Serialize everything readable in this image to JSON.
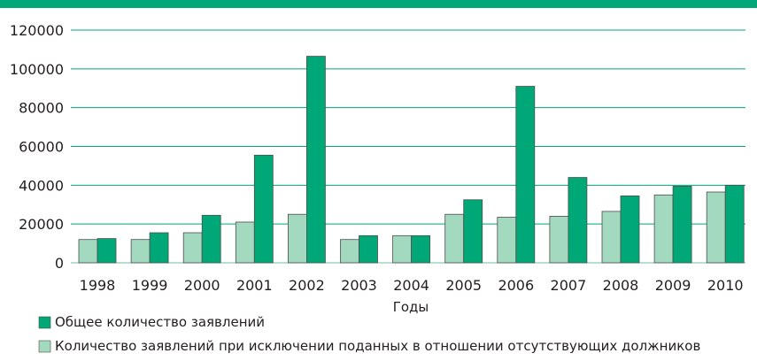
{
  "colors": {
    "top_bar": "#00a878",
    "gridline": "#00a878",
    "axis_text": "#231f20"
  },
  "chart_data": {
    "type": "bar",
    "title": "",
    "xlabel": "Годы",
    "ylabel": "",
    "ylim": [
      0,
      120000
    ],
    "yticks": [
      0,
      20000,
      40000,
      60000,
      80000,
      100000,
      120000
    ],
    "ytick_labels": [
      "0",
      "20000",
      "40000",
      "60000",
      "80000",
      "100000",
      "120000"
    ],
    "grid": true,
    "legend_position": "bottom-left",
    "categories": [
      "1998",
      "1999",
      "2000",
      "2001",
      "2002",
      "2003",
      "2004",
      "2005",
      "2006",
      "2007",
      "2008",
      "2009",
      "2010"
    ],
    "series": [
      {
        "name": "Количество заявлений при исключении поданных в отношении отсутствующих должников",
        "color": "#a3d9bf",
        "values": [
          12000,
          12000,
          15500,
          21000,
          25000,
          12000,
          14000,
          25000,
          23500,
          24000,
          26500,
          35000,
          36500
        ]
      },
      {
        "name": "Общее количество заявлений",
        "color": "#00a878",
        "values": [
          12500,
          15500,
          24500,
          55500,
          106500,
          14000,
          14000,
          32500,
          91000,
          44000,
          34500,
          39500,
          40000
        ]
      }
    ]
  }
}
